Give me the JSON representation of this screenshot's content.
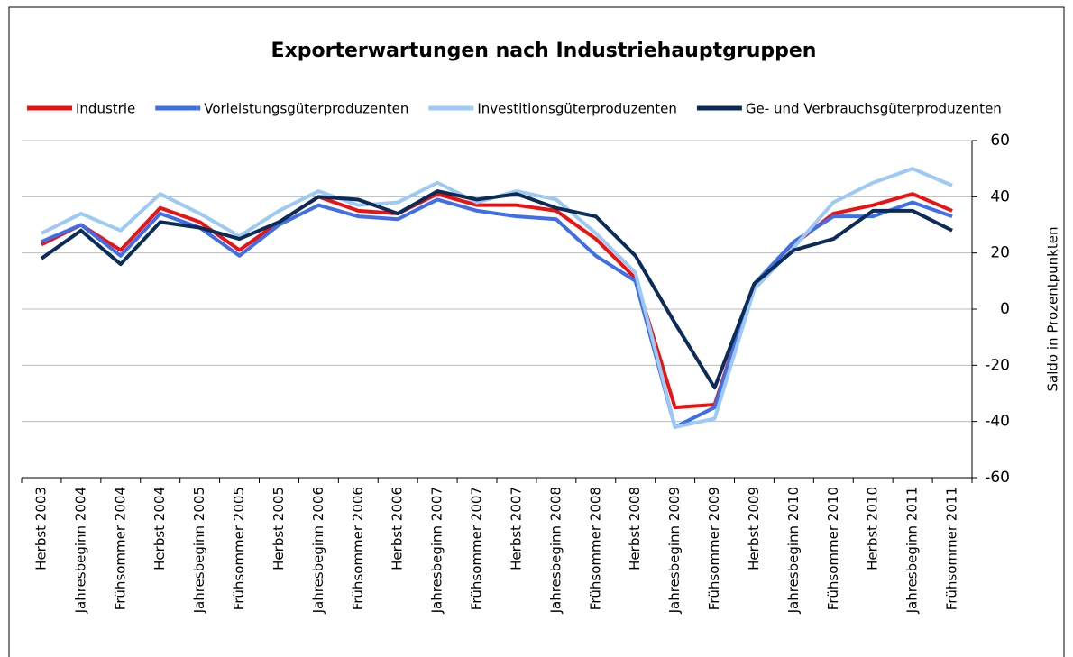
{
  "chart_data": {
    "type": "line",
    "title": "Exporterwartungen nach Industriehauptgruppen",
    "y_label": "Saldo in Prozentpunkten",
    "categories": [
      "Herbst 2003",
      "Jahresbeginn 2004",
      "Frühsommer 2004",
      "Herbst 2004",
      "Jahresbeginn 2005",
      "Frühsommer 2005",
      "Herbst 2005",
      "Jahresbeginn 2006",
      "Frühsommer 2006",
      "Herbst 2006",
      "Jahresbeginn 2007",
      "Frühsommer 2007",
      "Herbst 2007",
      "Jahresbeginn 2008",
      "Frühsommer 2008",
      "Herbst 2008",
      "Jahresbeginn 2009",
      "Frühsommer 2009",
      "Herbst 2009",
      "Jahresbeginn 2010",
      "Frühsommer 2010",
      "Herbst 2010",
      "Jahresbeginn 2011",
      "Frühsommer 2011"
    ],
    "series": [
      {
        "name": "Industrie",
        "color": "#ee1111",
        "values": [
          23,
          30,
          21,
          36,
          31,
          21,
          31,
          40,
          35,
          34,
          41,
          37,
          37,
          35,
          25,
          11,
          -35,
          -34,
          9,
          23,
          34,
          37,
          41,
          35
        ]
      },
      {
        "name": "Vorleistungsgüterproduzenten",
        "color": "#3f6fe8",
        "values": [
          24,
          30,
          19,
          34,
          29,
          19,
          30,
          37,
          33,
          32,
          39,
          35,
          33,
          32,
          19,
          10,
          -42,
          -35,
          9,
          24,
          33,
          33,
          38,
          33
        ]
      },
      {
        "name": "Investitionsgüterproduzenten",
        "color": "#9ccaf5",
        "values": [
          27,
          34,
          28,
          41,
          34,
          26,
          35,
          42,
          37,
          38,
          45,
          38,
          42,
          39,
          27,
          13,
          -42,
          -39,
          7,
          22,
          38,
          45,
          50,
          44
        ]
      },
      {
        "name": "Ge- und Verbrauchsgüterproduzenten",
        "color": "#0b2c58",
        "values": [
          18,
          28,
          16,
          31,
          29,
          25,
          31,
          40,
          39,
          34,
          42,
          39,
          41,
          36,
          33,
          19,
          -5,
          -28,
          9,
          21,
          25,
          35,
          35,
          28
        ]
      }
    ],
    "ylim": [
      -60,
      60
    ],
    "yticks": [
      -60,
      -40,
      -20,
      0,
      20,
      40,
      60
    ],
    "y_axis_side": "right",
    "grid": true,
    "legend": "top"
  }
}
